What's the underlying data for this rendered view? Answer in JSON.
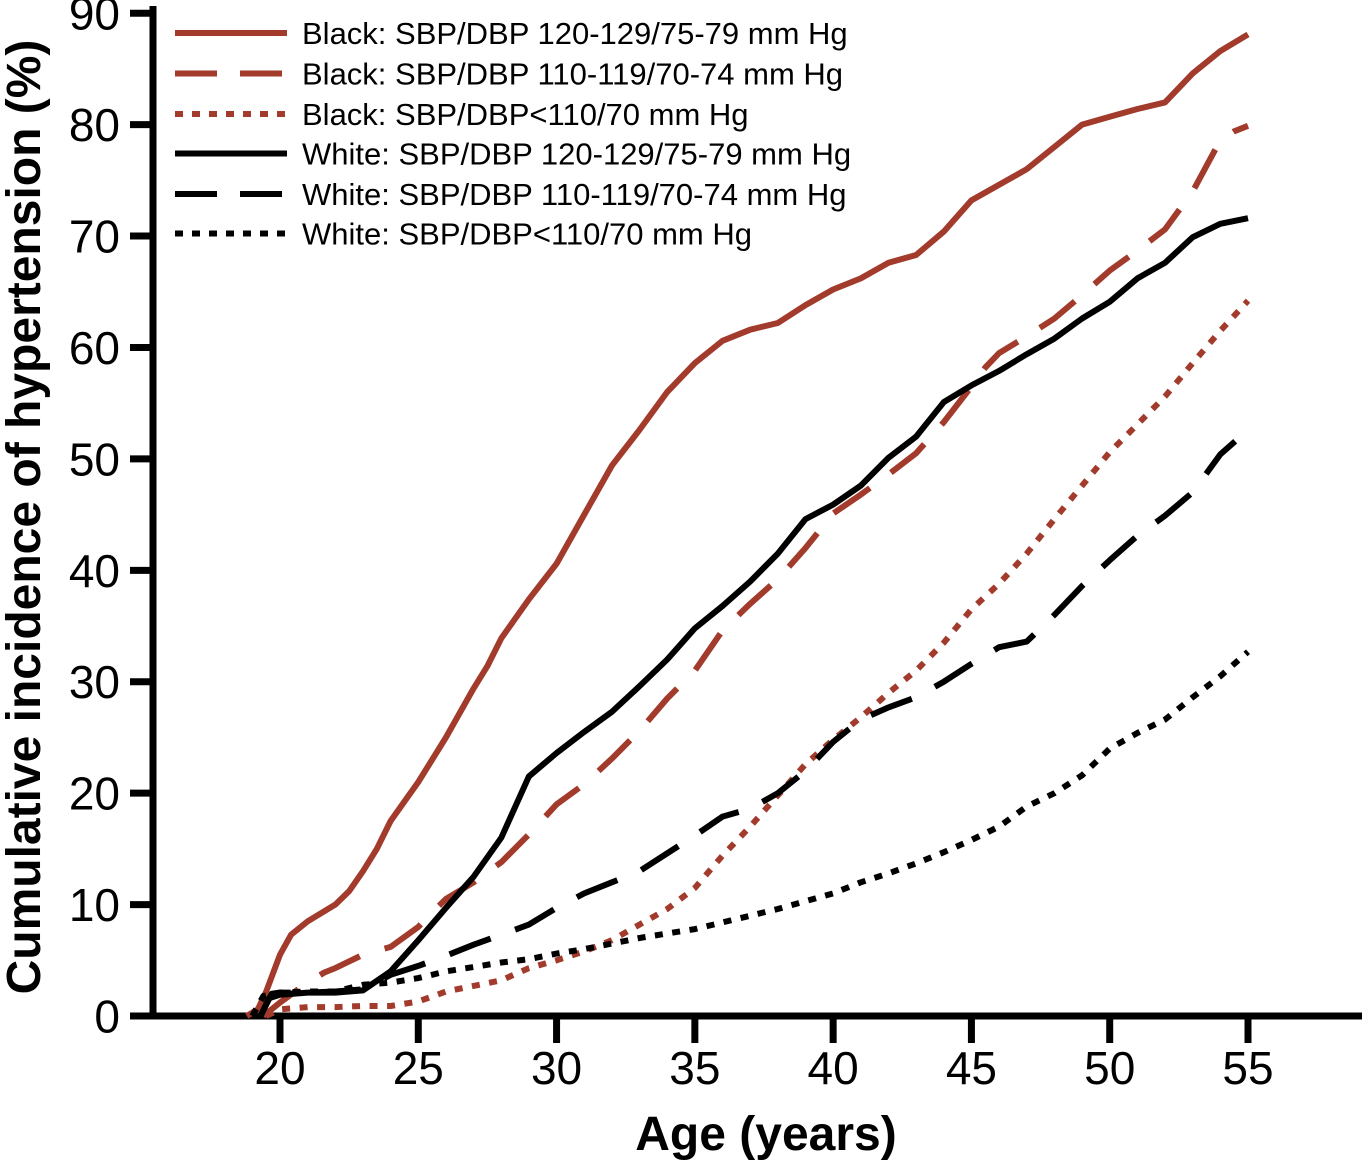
{
  "figure": {
    "x_axis_title": "Age (years)",
    "y_axis_title": "Cumulative incidence of hypertension (%)"
  },
  "chart_data": {
    "type": "line",
    "title": "",
    "xlabel": "Age (years)",
    "ylabel": "Cumulative incidence of hypertension (%)",
    "xlim": [
      17.8,
      56.2
    ],
    "ylim": [
      0,
      90
    ],
    "x_ticks": [
      20,
      25,
      30,
      35,
      40,
      45,
      50,
      55
    ],
    "y_ticks": [
      0,
      10,
      20,
      30,
      40,
      50,
      60,
      70,
      80,
      90
    ],
    "grid": false,
    "legend_position": "top-left-inside",
    "colors": {
      "black_cohort": "#A23B2C",
      "white_cohort": "#000000"
    },
    "series": [
      {
        "id": "black-120-129",
        "label": "Black: SBP/DBP 120-129/75-79 mm Hg",
        "color": "#A23B2C",
        "style": "solid",
        "points": [
          [
            18.8,
            0
          ],
          [
            19.2,
            0.6
          ],
          [
            19.5,
            2.2
          ],
          [
            20,
            5.5
          ],
          [
            20.4,
            7.3
          ],
          [
            21,
            8.5
          ],
          [
            22,
            10
          ],
          [
            22.5,
            11.2
          ],
          [
            23,
            13
          ],
          [
            23.5,
            15
          ],
          [
            24,
            17.5
          ],
          [
            25,
            21
          ],
          [
            26,
            25
          ],
          [
            27,
            29.4
          ],
          [
            27.5,
            31.4
          ],
          [
            28,
            33.9
          ],
          [
            29,
            37.4
          ],
          [
            30,
            40.6
          ],
          [
            31,
            45
          ],
          [
            32,
            49.4
          ],
          [
            33,
            52.6
          ],
          [
            34,
            56
          ],
          [
            35,
            58.6
          ],
          [
            36,
            60.6
          ],
          [
            37,
            61.6
          ],
          [
            38,
            62.2
          ],
          [
            39,
            63.8
          ],
          [
            40,
            65.2
          ],
          [
            41,
            66.2
          ],
          [
            42,
            67.6
          ],
          [
            43,
            68.3
          ],
          [
            44,
            70.4
          ],
          [
            45,
            73.2
          ],
          [
            46,
            74.6
          ],
          [
            47,
            76
          ],
          [
            48,
            78
          ],
          [
            49,
            80
          ],
          [
            50,
            80.7
          ],
          [
            51,
            81.4
          ],
          [
            52,
            82
          ],
          [
            53,
            84.6
          ],
          [
            54,
            86.6
          ],
          [
            55,
            88.1
          ]
        ]
      },
      {
        "id": "black-110-119",
        "label": "Black: SBP/DBP 110-119/70-74 mm Hg",
        "color": "#A23B2C",
        "style": "dashed",
        "points": [
          [
            19.4,
            0
          ],
          [
            20,
            1.2
          ],
          [
            20.6,
            2.3
          ],
          [
            21,
            3
          ],
          [
            21.6,
            3.9
          ],
          [
            22,
            4.3
          ],
          [
            23,
            5.5
          ],
          [
            24,
            6.2
          ],
          [
            25,
            8
          ],
          [
            25.5,
            9.3
          ],
          [
            26,
            10.5
          ],
          [
            27,
            12
          ],
          [
            28,
            13.8
          ],
          [
            29,
            16.3
          ],
          [
            30,
            19
          ],
          [
            31,
            20.8
          ],
          [
            32,
            23.1
          ],
          [
            33,
            25.6
          ],
          [
            34,
            28.5
          ],
          [
            35,
            31
          ],
          [
            36,
            34.6
          ],
          [
            37,
            37
          ],
          [
            38,
            39.2
          ],
          [
            39,
            42
          ],
          [
            40,
            45.1
          ],
          [
            41,
            46.8
          ],
          [
            42,
            48.6
          ],
          [
            43,
            50.5
          ],
          [
            44,
            53.3
          ],
          [
            45,
            56.5
          ],
          [
            45.5,
            58.2
          ],
          [
            46,
            59.5
          ],
          [
            47,
            61
          ],
          [
            48,
            62.6
          ],
          [
            49,
            64.7
          ],
          [
            50,
            66.9
          ],
          [
            51,
            68.7
          ],
          [
            52,
            70.6
          ],
          [
            53,
            74
          ],
          [
            54,
            78.6
          ],
          [
            54.5,
            79.4
          ],
          [
            55,
            79.9
          ]
        ]
      },
      {
        "id": "black-lt-110",
        "label": "Black: SBP/DBP<110/70 mm Hg",
        "color": "#A23B2C",
        "style": "dotted",
        "points": [
          [
            19.5,
            0
          ],
          [
            20,
            0.6
          ],
          [
            21,
            0.8
          ],
          [
            22,
            0.8
          ],
          [
            23,
            0.9
          ],
          [
            24,
            0.9
          ],
          [
            25,
            1.3
          ],
          [
            26,
            2.2
          ],
          [
            27,
            2.7
          ],
          [
            28,
            3.2
          ],
          [
            29,
            4.3
          ],
          [
            30,
            5
          ],
          [
            31,
            5.8
          ],
          [
            32,
            6.8
          ],
          [
            33,
            8.2
          ],
          [
            34,
            9.6
          ],
          [
            35,
            11.5
          ],
          [
            36,
            14.4
          ],
          [
            37,
            17
          ],
          [
            38,
            19.8
          ],
          [
            39,
            22.6
          ],
          [
            40,
            24.8
          ],
          [
            41,
            26.8
          ],
          [
            42,
            29
          ],
          [
            43,
            31
          ],
          [
            44,
            33.5
          ],
          [
            45,
            36.5
          ],
          [
            46,
            38.8
          ],
          [
            47,
            41.5
          ],
          [
            48,
            44.6
          ],
          [
            49,
            47.6
          ],
          [
            50,
            50.6
          ],
          [
            51,
            53.1
          ],
          [
            52,
            55.6
          ],
          [
            53,
            58.6
          ],
          [
            54,
            61.5
          ],
          [
            55,
            64.2
          ]
        ]
      },
      {
        "id": "white-120-129",
        "label": "White: SBP/DBP 120-129/75-79 mm Hg",
        "color": "#000000",
        "style": "solid",
        "points": [
          [
            19.3,
            0
          ],
          [
            19.6,
            1.6
          ],
          [
            20,
            1.9
          ],
          [
            21,
            2.1
          ],
          [
            22,
            2.1
          ],
          [
            23,
            2.3
          ],
          [
            24,
            4
          ],
          [
            25,
            6.8
          ],
          [
            26,
            9.7
          ],
          [
            27,
            12.5
          ],
          [
            28,
            16
          ],
          [
            29,
            21.5
          ],
          [
            30,
            23.6
          ],
          [
            31,
            25.5
          ],
          [
            32,
            27.3
          ],
          [
            33,
            29.6
          ],
          [
            34,
            32
          ],
          [
            35,
            34.8
          ],
          [
            36,
            36.8
          ],
          [
            37,
            39
          ],
          [
            38,
            41.5
          ],
          [
            39,
            44.6
          ],
          [
            40,
            45.9
          ],
          [
            41,
            47.6
          ],
          [
            42,
            50.1
          ],
          [
            43,
            52
          ],
          [
            44,
            55.1
          ],
          [
            45,
            56.6
          ],
          [
            46,
            57.9
          ],
          [
            47,
            59.4
          ],
          [
            48,
            60.8
          ],
          [
            49,
            62.6
          ],
          [
            50,
            64.1
          ],
          [
            51,
            66.2
          ],
          [
            52,
            67.6
          ],
          [
            53,
            69.9
          ],
          [
            54,
            71.1
          ],
          [
            55,
            71.6
          ]
        ]
      },
      {
        "id": "white-110-119",
        "label": "White: SBP/DBP 110-119/70-74 mm Hg",
        "color": "#000000",
        "style": "dashed",
        "points": [
          [
            19.3,
            0
          ],
          [
            19.7,
            2
          ],
          [
            20,
            2.1
          ],
          [
            21,
            2.1
          ],
          [
            22,
            2.2
          ],
          [
            23,
            2.4
          ],
          [
            24,
            3.7
          ],
          [
            25,
            4.5
          ],
          [
            26,
            5.4
          ],
          [
            27,
            6.4
          ],
          [
            28,
            7.3
          ],
          [
            29,
            8.2
          ],
          [
            30,
            9.7
          ],
          [
            31,
            11
          ],
          [
            32,
            12
          ],
          [
            33,
            13
          ],
          [
            34,
            14.6
          ],
          [
            35,
            16.2
          ],
          [
            36,
            17.9
          ],
          [
            37,
            18.6
          ],
          [
            38,
            20
          ],
          [
            39,
            22
          ],
          [
            40,
            24.6
          ],
          [
            41,
            26.6
          ],
          [
            42,
            27.7
          ],
          [
            43,
            28.6
          ],
          [
            44,
            30
          ],
          [
            45,
            31.6
          ],
          [
            46,
            33.1
          ],
          [
            47,
            33.6
          ],
          [
            48,
            36
          ],
          [
            49,
            38.6
          ],
          [
            50,
            40.9
          ],
          [
            51,
            43.1
          ],
          [
            52,
            44.9
          ],
          [
            53,
            47
          ],
          [
            54,
            50.4
          ],
          [
            55,
            52.6
          ]
        ]
      },
      {
        "id": "white-lt-110",
        "label": "White: SBP/DBP<110/70 mm Hg",
        "color": "#000000",
        "style": "dotted",
        "points": [
          [
            19,
            0
          ],
          [
            19.4,
            1.8
          ],
          [
            20,
            2.1
          ],
          [
            21,
            2.2
          ],
          [
            22,
            2.2
          ],
          [
            23,
            2.8
          ],
          [
            24,
            3
          ],
          [
            25,
            3.4
          ],
          [
            26,
            4
          ],
          [
            27,
            4.4
          ],
          [
            28,
            4.8
          ],
          [
            29,
            5.1
          ],
          [
            30,
            5.6
          ],
          [
            31,
            6
          ],
          [
            32,
            6.5
          ],
          [
            33,
            7
          ],
          [
            34,
            7.4
          ],
          [
            35,
            7.8
          ],
          [
            36,
            8.4
          ],
          [
            37,
            9
          ],
          [
            38,
            9.6
          ],
          [
            39,
            10.3
          ],
          [
            40,
            11
          ],
          [
            41,
            12
          ],
          [
            42,
            12.8
          ],
          [
            43,
            13.7
          ],
          [
            44,
            14.7
          ],
          [
            45,
            15.8
          ],
          [
            46,
            17
          ],
          [
            47,
            18.8
          ],
          [
            48,
            20
          ],
          [
            49,
            21.6
          ],
          [
            50,
            24
          ],
          [
            51,
            25.4
          ],
          [
            52,
            26.6
          ],
          [
            53,
            28.6
          ],
          [
            54,
            30.5
          ],
          [
            55,
            32.7
          ]
        ]
      }
    ]
  }
}
